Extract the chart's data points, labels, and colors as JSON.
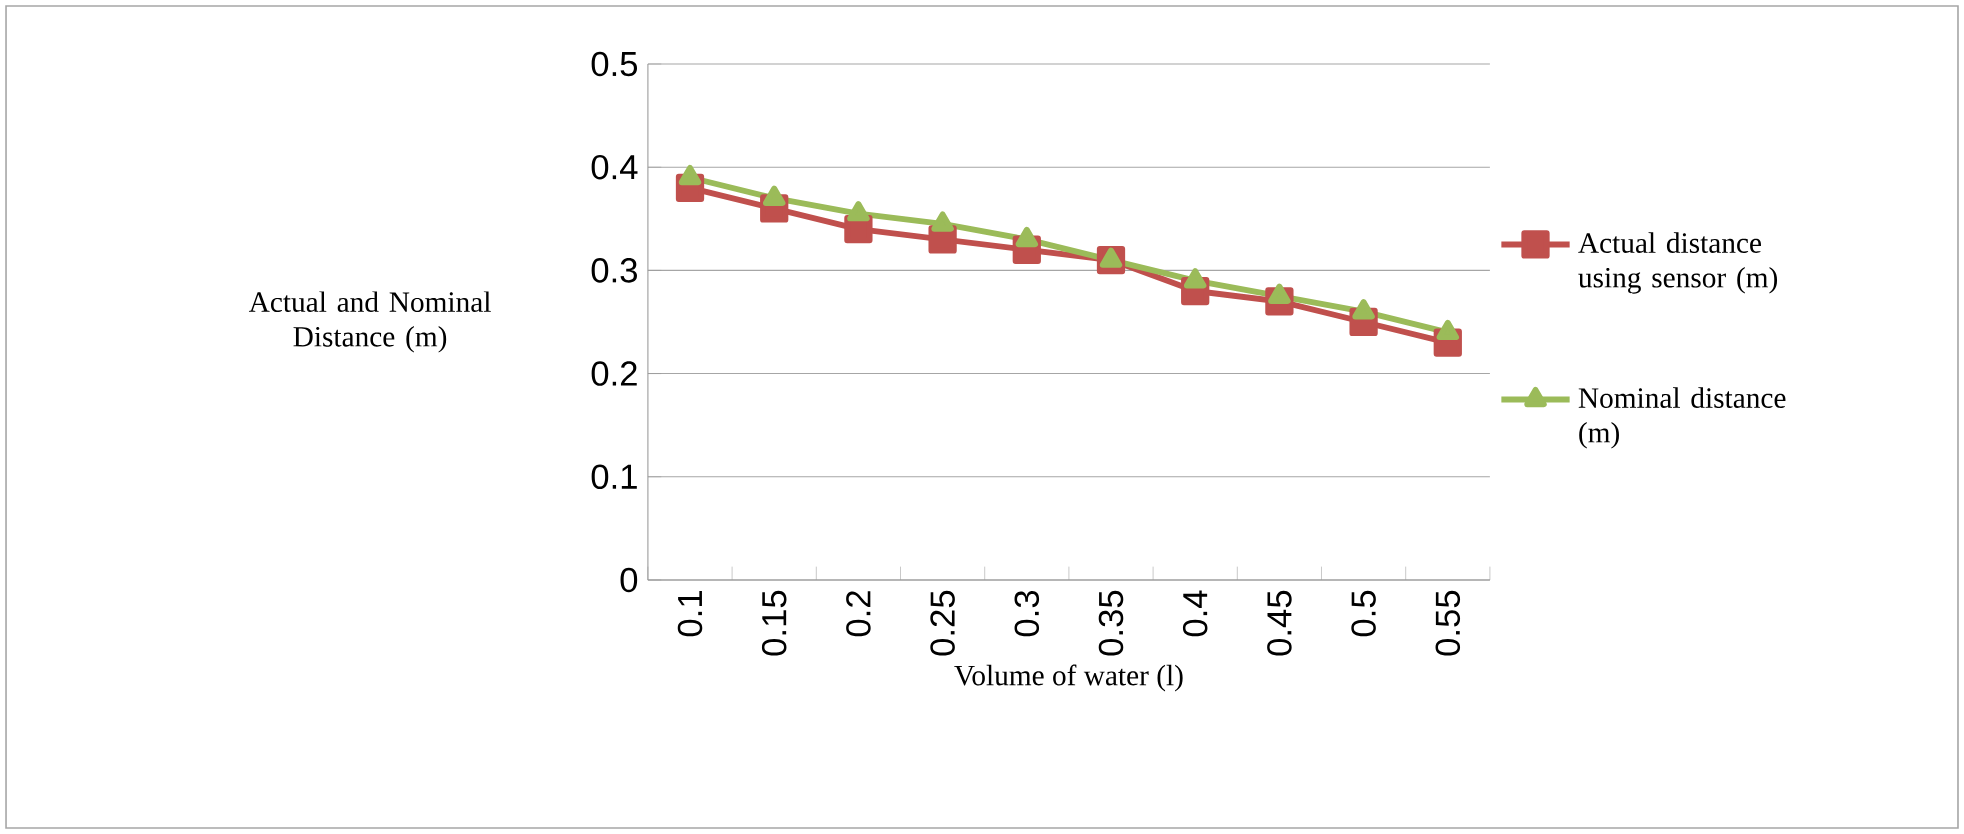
{
  "chart_data": {
    "type": "line",
    "xlabel": "Volume of water (l)",
    "ylabel": "Actual and Nominal Distance (m)",
    "categories": [
      "0.1",
      "0.15",
      "0.2",
      "0.25",
      "0.3",
      "0.35",
      "0.4",
      "0.45",
      "0.5",
      "0.55"
    ],
    "series": [
      {
        "name": "Actual distance using sensor (m)",
        "color": "#c0504d",
        "marker": "square",
        "values": [
          0.38,
          0.36,
          0.34,
          0.33,
          0.32,
          0.31,
          0.28,
          0.27,
          0.25,
          0.23
        ]
      },
      {
        "name": "Nominal distance (m)",
        "color": "#9bbb59",
        "marker": "triangle",
        "values": [
          0.39,
          0.37,
          0.355,
          0.345,
          0.33,
          0.31,
          0.29,
          0.275,
          0.26,
          0.24
        ]
      }
    ],
    "ylim": [
      0,
      0.5
    ],
    "yticks": [
      0,
      0.1,
      0.2,
      0.3,
      0.4,
      0.5
    ],
    "grid": "y",
    "legend": "right"
  }
}
